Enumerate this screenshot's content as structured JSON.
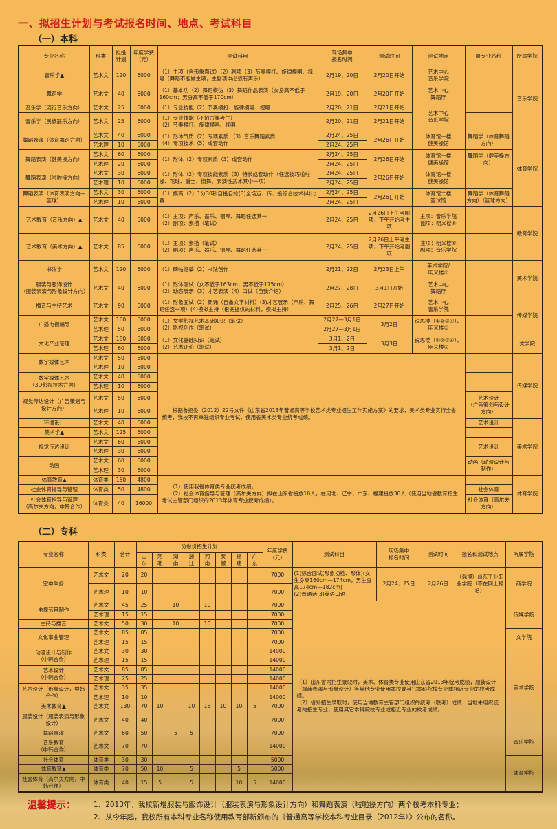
{
  "title": "一、拟招生计划与考试报名时间、地点、考试科目",
  "undergrad": {
    "heading": "（一）本科",
    "headers": [
      "专业名称",
      "科类",
      "拟投\n计划",
      "年度学费\n（元）",
      "测试科目",
      "现场集中\n报名时间",
      "测试时间",
      "测试地点",
      "原专业名称",
      "所属学院"
    ],
    "note_art": "　　根据鲁招委（2012）22号文件《山东省2013年普通高等学校艺术类专业招生工作实施方案》的要求，美术类专业实行全省统考，我校不再单独组织专业考试，使用省美术类专业统考成绩。",
    "note_sports": "　　（1）使用我省体育类专业统考成绩。\n　　（2）社会体育指导与管理（高尔夫方向）拟在山东省投放10人，在河北、辽宁、广东、福建投放30人（使用当地省教育招生考试主管部门组织的2013年体育专业统考成绩）。",
    "majors": [
      {
        "name": "音乐学▲",
        "rows": [
          {
            "type": "艺术文",
            "plan": "120",
            "fee": "6000",
            "reg": "2月19、20日"
          }
        ],
        "subjects": "（1）主项（含形象面试）（2）副项（3）节奏模打、旋律模唱、视唱（舞蹈不能做主项，主副项中必须有声乐）",
        "test_time": "2月20日开始",
        "location": "艺术中心\n音乐学院",
        "original": "",
        "college": "音乐学院"
      },
      {
        "name": "舞蹈学",
        "rows": [
          {
            "type": "艺术文",
            "plan": "40",
            "fee": "6000",
            "reg": "2月19、20日"
          }
        ],
        "subjects": "（1）基本功（2）舞蹈模仿（3）舞蹈作品表演（女身高不低于160cm；男身高不低于170cm）",
        "test_time": "2月20日开始",
        "location": "艺术中心\n舞蹈厅",
        "original": "",
        "college": "音乐学院"
      },
      {
        "name": "音乐学（流行音乐方向）",
        "rows": [
          {
            "type": "艺术文",
            "plan": "25",
            "fee": "6000",
            "reg": "2月20、21日"
          }
        ],
        "subjects": "（1）专业技能（2）节奏模打、旋律模唱、视唱",
        "test_time": "2月21日开始",
        "location": "艺术中心\n音乐学院",
        "original": "",
        "college": "音乐学院"
      },
      {
        "name": "音乐学（民族器乐方向）",
        "rows": [
          {
            "type": "艺术文",
            "plan": "25",
            "fee": "6000",
            "reg": "2月20、21日"
          }
        ],
        "subjects": "（1）专业技能（不招古筝考生）\n（2）节奏模打、旋律模唱、视唱",
        "test_time": "2月21日开始",
        "location": "艺术中心\n音乐学院",
        "original": "",
        "college": "音乐学院"
      },
      {
        "name": "舞蹈表演（体育舞蹈方向）",
        "rows": [
          {
            "type": "艺术文",
            "plan": "40",
            "fee": "6000",
            "reg": "2月24、25日"
          },
          {
            "type": "艺术理",
            "plan": "10",
            "fee": "6000",
            "reg": "2月24、25日"
          }
        ],
        "subjects": "（1）形体气质（2）专项素质 （3）音乐舞蹈素质\n（4）专项技术（5）成套动作",
        "test_time": "2月26日开始",
        "location": "体育馆一楼\n健美操馆",
        "original": "舞蹈学（体育舞蹈方向）",
        "college": "体育学院"
      },
      {
        "name": "舞蹈表演（健美操方向）",
        "rows": [
          {
            "type": "艺术文",
            "plan": "60",
            "fee": "6000",
            "reg": "2月24、25日"
          },
          {
            "type": "艺术理",
            "plan": "20",
            "fee": "6000",
            "reg": "2月24、25日"
          }
        ],
        "subjects": "（1）形体（2）专项素质（3）成套动作",
        "test_time": "2月26日开始",
        "location": "体育馆一楼\n健美操馆",
        "original": "舞蹈学（健美操方向）",
        "college": "体育学院"
      },
      {
        "name": "舞蹈表演（啦啦操方向）",
        "rows": [
          {
            "type": "艺术文",
            "plan": "30",
            "fee": "6000",
            "reg": "2月24、25日"
          },
          {
            "type": "艺术理",
            "plan": "10",
            "fee": "6000",
            "reg": "2月24、25日"
          }
        ],
        "subjects": "（1）形体（2）专项技能素质（3）特长成套动作（任选技巧啦啦操、花球、爵士、街舞、表演性武术其中一项）",
        "test_time": "2月26日开始",
        "location": "体育馆一楼\n健美操馆",
        "original": "",
        "college": "体育学院"
      },
      {
        "name": "舞蹈表演（体育表演方向—篮球）",
        "rows": [
          {
            "type": "艺术文",
            "plan": "30",
            "fee": "6000",
            "reg": "2月24、25日"
          },
          {
            "type": "艺术理",
            "plan": "10",
            "fee": "6000",
            "reg": "2月24、25日"
          }
        ],
        "subjects": "（1）摸高（2）1分30秒自投自抢(3)全场运、传、投综合技术(4)比赛",
        "test_time": "2月26日开始",
        "location": "体育馆二楼\n篮球馆",
        "original": "舞蹈学（体育舞蹈方向）（篮球方向）",
        "college": "体育学院"
      },
      {
        "name": "艺术教育（音乐方向）▲",
        "rows": [
          {
            "type": "艺术文",
            "plan": "40",
            "fee": "6000",
            "reg": "2月24、25日"
          }
        ],
        "subjects": "（1）主项：声乐、器乐、钢琴、舞蹈任选其一\n（2）副项：素描（笔试）",
        "test_time": "2月26日上午考副项，下午开始考主项",
        "location": "主项：音乐学院\n副项：明义楼⑥",
        "original": "",
        "college": "教育学院"
      },
      {
        "name": "艺术教育（美术方向）▲",
        "rows": [
          {
            "type": "艺术文",
            "plan": "85",
            "fee": "6000",
            "reg": "2月24、25日"
          }
        ],
        "subjects": "（1）主项：素描（笔试）\n（2）副项：声乐、器乐、钢琴、舞蹈任选其一",
        "test_time": "2月26日上午考主项，下午开始考副项",
        "location": "主项：明义楼⑥\n副项：音乐学院",
        "original": "",
        "college": "教育学院"
      },
      {
        "name": "书法学",
        "rows": [
          {
            "type": "艺术文",
            "plan": "120",
            "fee": "6000",
            "reg": "2月21、22日"
          }
        ],
        "subjects": "（1）碑帖临摹（2）书法创作",
        "test_time": "2月23日上午",
        "location": "美术学院/\n明义楼①",
        "original": "",
        "college": "美术学院"
      },
      {
        "name": "服装与服饰设计\n（服装表演与形象设计方向）",
        "rows": [
          {
            "type": "艺术文",
            "plan": "40",
            "fee": "6000",
            "reg": "2月27、28日"
          }
        ],
        "subjects": "（1）形体测试（女不低于163cm，男不低于175cm）\n（2）动态展示（3）才艺表演（4）口试（自我介绍）",
        "test_time": "3月1日开始",
        "location": "艺术中心\n舞蹈厅",
        "original": "",
        "college": "美术学院"
      },
      {
        "name": "播音与主持艺术",
        "rows": [
          {
            "type": "艺术文",
            "plan": "90",
            "fee": "6000",
            "reg": "2月25、26日"
          }
        ],
        "subjects": "（1）形象面试（2）朗诵（自备文字材料）(3)才艺展示（声乐、舞蹈任选一项）(4)模拟主持（根据提供的材料，模拟主持）",
        "test_time": "2月27日开始",
        "location": "艺术中心\n音乐学院",
        "original": "",
        "college": "传媒学院"
      },
      {
        "name": "广播电视编导",
        "rows": [
          {
            "type": "艺术文",
            "plan": "160",
            "fee": "6000",
            "reg": "2月27—3月1日"
          },
          {
            "type": "艺术理",
            "plan": "50",
            "fee": "6000",
            "reg": "2月27—3月1日"
          }
        ],
        "subjects": "（1）文学影视艺术基础知识（笔试）\n（2）影视创作（笔试）",
        "test_time": "3月2日",
        "location": "锐思楼（①②③④）、明义楼①",
        "original": "",
        "college": "传媒学院"
      },
      {
        "name": "文化产业管理",
        "rows": [
          {
            "type": "艺术文",
            "plan": "180",
            "fee": "6000",
            "reg": "3月1、2日"
          },
          {
            "type": "艺术理",
            "plan": "60",
            "fee": "6000",
            "reg": "3月1、2日"
          }
        ],
        "subjects": "（1）文化基础知识（笔试）\n（2）艺术评论（笔试）",
        "test_time": "3月3日",
        "location": "锐思楼（①②③④）、明义楼①",
        "original": "",
        "college": "文学院"
      },
      {
        "name": "数字媒体艺术",
        "rows": [
          {
            "type": "艺术文",
            "plan": "50",
            "fee": "6000"
          },
          {
            "type": "艺术理",
            "plan": "10",
            "fee": "6000"
          }
        ],
        "original": "",
        "college": "传媒学院"
      },
      {
        "name": "数字媒体艺术\n（3D影视技术方向）",
        "rows": [
          {
            "type": "艺术文",
            "plan": "40",
            "fee": "6000"
          },
          {
            "type": "艺术理",
            "plan": "10",
            "fee": "6000"
          }
        ],
        "original": "",
        "college": "传媒学院"
      },
      {
        "name": "视觉传达设计（广告策划与设计方向）",
        "rows": [
          {
            "type": "艺术文",
            "plan": "50",
            "fee": "6000"
          },
          {
            "type": "艺术理",
            "plan": "10",
            "fee": "6000"
          }
        ],
        "original": "艺术设计\n（广告策划与设计方向）",
        "college": "传媒学院"
      },
      {
        "name": "环境设计",
        "rows": [
          {
            "type": "艺术文",
            "plan": "40",
            "fee": "6000"
          }
        ],
        "original": "艺术设计",
        "college": "美术学院"
      },
      {
        "name": "美术学▲",
        "rows": [
          {
            "type": "艺术文",
            "plan": "125",
            "fee": "6000"
          }
        ],
        "original": "",
        "college": "美术学院"
      },
      {
        "name": "视觉传达设计",
        "rows": [
          {
            "type": "艺术文",
            "plan": "60",
            "fee": "6000"
          },
          {
            "type": "艺术理",
            "plan": "30",
            "fee": "6000"
          }
        ],
        "original": "艺术设计",
        "college": "美术学院"
      },
      {
        "name": "动画",
        "rows": [
          {
            "type": "艺术文",
            "plan": "60",
            "fee": "6000"
          },
          {
            "type": "艺术理",
            "plan": "30",
            "fee": "6000"
          }
        ],
        "original": "动画（动漫设计与制作）",
        "college": "美术学院"
      },
      {
        "name": "体育教育▲",
        "rows": [
          {
            "type": "体育类",
            "plan": "150",
            "fee": "4800"
          }
        ],
        "original": "",
        "college": "体育学院"
      },
      {
        "name": "社会体育指导与管理",
        "rows": [
          {
            "type": "体育类",
            "plan": "50",
            "fee": "4800"
          }
        ],
        "original": "社会体育",
        "college": "体育学院"
      },
      {
        "name": "社会体育指导与管理\n（高尔夫方向，中韩合作）",
        "rows": [
          {
            "type": "体育类",
            "plan": "40",
            "fee": "16000"
          }
        ],
        "original": "社会体育（高尔夫方向）",
        "college": "体育学院"
      }
    ]
  },
  "junior": {
    "heading": "（二）专科",
    "headers": {
      "name": "专业名称",
      "type": "科类",
      "total": "合计",
      "province_plan": "分省份招生计划",
      "fee": "年度学费\n（元）",
      "subjects": "测试科目",
      "reg": "现场集中\n报名时间",
      "time": "测试时间",
      "location": "报名和测试地点",
      "college": "所属学院"
    },
    "provinces": [
      "山\n东",
      "河\n北",
      "湖\n南",
      "浙\n江",
      "河\n南",
      "安\n徽",
      "福\n建",
      "广\n东"
    ],
    "first_major_info": {
      "subjects": "(1)综合面试(形象初检、形体)(女生身高160cm—174cm，男生身高174cm—182cm)\n(2)普通话(3)英语口语",
      "reg": "2月24、25日",
      "time": "2月26日",
      "location": "（淄博）山东工业职业学院（不在网上报名）"
    },
    "note": "（1）山东省内招生录取时，美术、体育类专业使用山东省2013年统考成绩，服装设计（服装表演与形象设计）等其他专业使用本校或其它本科院校专业或相近专业的校考成绩。\n（2）省外招生录取时，使用当地教育主管部门组织的统考（联考）成绩，当地未组织统考的招生专业，使用其它本科院校专业或相近专业的校考成绩。",
    "majors": [
      {
        "name": "空中乘务",
        "college": "商学院",
        "rows": [
          {
            "type": "艺术文",
            "total": "20",
            "prov": [
              "20",
              "",
              "",
              "",
              "",
              "",
              "",
              ""
            ],
            "fee": "7000"
          },
          {
            "type": "艺术理",
            "total": "10",
            "prov": [
              "10",
              "",
              "",
              "",
              "",
              "",
              "",
              ""
            ],
            "fee": "7000"
          }
        ]
      },
      {
        "name": "电视节目制作",
        "college": "传媒学院",
        "rows": [
          {
            "type": "艺术文",
            "total": "45",
            "prov": [
              "25",
              "",
              "10",
              "",
              "10",
              "",
              "",
              ""
            ],
            "fee": "7000"
          },
          {
            "type": "艺术理",
            "total": "15",
            "prov": [
              "15",
              "",
              "",
              "",
              "",
              "",
              "",
              ""
            ],
            "fee": "7000"
          }
        ]
      },
      {
        "name": "主持与播音",
        "college": "传媒学院",
        "rows": [
          {
            "type": "艺术文",
            "total": "50",
            "prov": [
              "30",
              "",
              "10",
              "",
              "10",
              "",
              "",
              ""
            ],
            "fee": "7000"
          }
        ]
      },
      {
        "name": "文化事业管理",
        "college": "文学院",
        "rows": [
          {
            "type": "艺术文",
            "total": "85",
            "prov": [
              "85",
              "",
              "",
              "",
              "",
              "",
              "",
              ""
            ],
            "fee": "7000"
          },
          {
            "type": "艺术理",
            "total": "15",
            "prov": [
              "15",
              "",
              "",
              "",
              "",
              "",
              "",
              ""
            ],
            "fee": "7000"
          }
        ]
      },
      {
        "name": "动漫设计与制作\n（中韩合作）",
        "college": "美术学院",
        "rows": [
          {
            "type": "艺术文",
            "total": "30",
            "prov": [
              "30",
              "",
              "",
              "",
              "",
              "",
              "",
              ""
            ],
            "fee": "14000"
          },
          {
            "type": "艺术理",
            "total": "15",
            "prov": [
              "15",
              "",
              "",
              "",
              "",
              "",
              "",
              ""
            ],
            "fee": "14000"
          }
        ]
      },
      {
        "name": "艺术设计\n（中韩合作）",
        "college": "美术学院",
        "rows": [
          {
            "type": "艺术文",
            "total": "85",
            "prov": [
              "85",
              "",
              "",
              "",
              "",
              "",
              "",
              ""
            ],
            "fee": "14000"
          },
          {
            "type": "艺术理",
            "total": "25",
            "prov": [
              "25",
              "",
              "",
              "",
              "",
              "",
              "",
              ""
            ],
            "fee": "14000"
          }
        ]
      },
      {
        "name": "艺术设计（形象设计，中韩合作）",
        "college": "美术学院",
        "rows": [
          {
            "type": "艺术文",
            "total": "35",
            "prov": [
              "35",
              "",
              "",
              "",
              "",
              "",
              "",
              ""
            ],
            "fee": "14000"
          },
          {
            "type": "艺术理",
            "total": "10",
            "prov": [
              "10",
              "",
              "",
              "",
              "",
              "",
              "",
              ""
            ],
            "fee": "14000"
          }
        ]
      },
      {
        "name": "美术教育▲",
        "college": "美术学院",
        "rows": [
          {
            "type": "艺术文",
            "total": "130",
            "prov": [
              "70",
              "10",
              "",
              "10",
              "15",
              "10",
              "10",
              "5"
            ],
            "fee": "7000"
          }
        ]
      },
      {
        "name": "服装设计（服装表演与形象设计）",
        "college": "美术学院",
        "rows": [
          {
            "type": "艺术文",
            "total": "40",
            "prov": [
              "40",
              "",
              "",
              "",
              "",
              "",
              "",
              ""
            ],
            "fee": "7000"
          }
        ]
      },
      {
        "name": "舞蹈表演",
        "college": "音乐学院",
        "rows": [
          {
            "type": "艺术文",
            "total": "60",
            "prov": [
              "50",
              "",
              "5",
              "5",
              "",
              "",
              "",
              ""
            ],
            "fee": "7000"
          }
        ]
      },
      {
        "name": "音乐教育\n（中韩合作）",
        "college": "音乐学院",
        "rows": [
          {
            "type": "艺术文",
            "total": "70",
            "prov": [
              "70",
              "",
              "",
              "",
              "",
              "",
              "",
              ""
            ],
            "fee": "14000"
          }
        ]
      },
      {
        "name": "社会体育",
        "college": "体育学院",
        "rows": [
          {
            "type": "体育类",
            "total": "30",
            "prov": [
              "30",
              "",
              "",
              "",
              "",
              "",
              "",
              ""
            ],
            "fee": "5000"
          }
        ]
      },
      {
        "name": "体育教育▲",
        "college": "体育学院",
        "rows": [
          {
            "type": "体育类",
            "total": "70",
            "prov": [
              "50",
              "10",
              "",
              "5",
              "",
              "",
              "5",
              ""
            ],
            "fee": "5000"
          }
        ]
      },
      {
        "name": "社会体育（高尔夫方向，中韩合作）",
        "college": "体育学院",
        "rows": [
          {
            "type": "体育类",
            "total": "40",
            "prov": [
              "15",
              "5",
              "",
              "5",
              "",
              "",
              "10",
              "5"
            ],
            "fee": "14000"
          }
        ]
      }
    ]
  },
  "tips": {
    "label": "温馨提示：",
    "lines": [
      "1、2013年，我校新增服装与服饰设计（服装表演与形象设计方向）和舞蹈表演（啦啦操方向）两个校考本科专业；",
      "2、从今年起，我校所有本科专业名称使用教育部新颁布的《普通高等学校本科专业目录（2012年）》公布的名称。"
    ]
  },
  "colors": {
    "background": "#f5b95a",
    "title": "#cf1b1f",
    "border": "#3a2a10"
  }
}
